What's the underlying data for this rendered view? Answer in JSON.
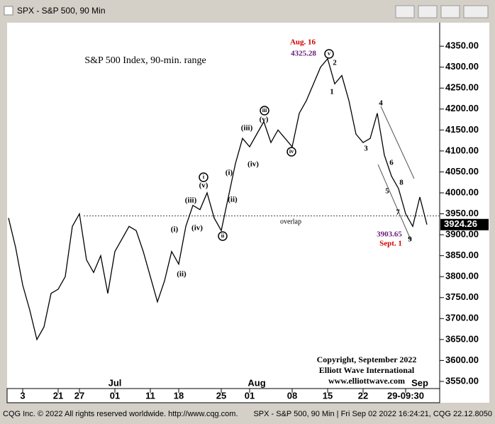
{
  "window_title": "SPX - S&P 500, 90 Min",
  "status_left": "CQG Inc. © 2022 All rights reserved worldwide. http://www.cqg.com.",
  "status_right": "SPX - S&P 500, 90 Min | Fri Sep 02 2022 16:24:21, CQG 22.12.8050",
  "chart_data": {
    "type": "line",
    "title": "S&P 500 Index, 90-min. range",
    "copyright": [
      "Copyright, September 2022",
      "Elliott Wave International",
      "www.elliottwave.com"
    ],
    "categories": [
      null,
      null,
      "3",
      null,
      null,
      null,
      null,
      "21",
      null,
      null,
      "27",
      null,
      null,
      null,
      null,
      "01",
      null,
      null,
      null,
      null,
      "11",
      null,
      null,
      null,
      "18",
      null,
      null,
      null,
      null,
      null,
      "25",
      null,
      null,
      null,
      "01",
      null,
      null,
      null,
      null,
      null,
      "08",
      null,
      null,
      null,
      null,
      "15",
      null,
      null,
      null,
      null,
      "22",
      null,
      null,
      null,
      null,
      null,
      "29-09:30",
      null,
      null,
      null
    ],
    "month_labels": [
      "Jul",
      "Aug",
      "Sep"
    ],
    "series": [
      {
        "name": "SPX",
        "color": "#000000",
        "values": [
          3940,
          3870,
          3780,
          3720,
          3650,
          3680,
          3760,
          3770,
          3800,
          3920,
          3950,
          3840,
          3810,
          3850,
          3760,
          3860,
          3890,
          3920,
          3910,
          3860,
          3800,
          3740,
          3790,
          3860,
          3830,
          3920,
          3970,
          3960,
          4000,
          3940,
          3910,
          3990,
          4070,
          4130,
          4110,
          4140,
          4170,
          4120,
          4150,
          4130,
          4110,
          4190,
          4220,
          4260,
          4300,
          4320,
          4260,
          4280,
          4220,
          4140,
          4120,
          4130,
          4190,
          4090,
          4040,
          4010,
          3950,
          3920,
          3990,
          3924.26
        ]
      }
    ],
    "last_price": 3924.26,
    "overlap_level": 3945,
    "ylim": [
      3533,
      4401
    ],
    "yticks": [
      {
        "value": 3550,
        "label": "3550.00"
      },
      {
        "value": 3600,
        "label": "3600.00"
      },
      {
        "value": 3650,
        "label": "3650.00"
      },
      {
        "value": 3700,
        "label": "3700.00"
      },
      {
        "value": 3750,
        "label": "3750.00"
      },
      {
        "value": 3800,
        "label": "3800.00"
      },
      {
        "value": 3850,
        "label": "3850.00"
      },
      {
        "value": 3900,
        "label": "3900.00"
      },
      {
        "value": 3950,
        "label": "3950.00"
      },
      {
        "value": 4000,
        "label": "4000.00"
      },
      {
        "value": 4050,
        "label": "4050.00"
      },
      {
        "value": 4100,
        "label": "4100.00"
      },
      {
        "value": 4150,
        "label": "4150.00"
      },
      {
        "value": 4200,
        "label": "4200.00"
      },
      {
        "value": 4250,
        "label": "4250.00"
      },
      {
        "value": 4300,
        "label": "4300.00"
      },
      {
        "value": 4350,
        "label": "4350.00"
      }
    ],
    "annotations": [
      "Aug. 16",
      "4325.28",
      "v",
      "2",
      "1",
      "4",
      "3",
      "6",
      "5",
      "8",
      "7",
      "9",
      "3903.65",
      "Sept. 1",
      "(iii)",
      "(v)",
      "iii",
      "(iv)",
      "iv",
      "(i)",
      "(ii)",
      "(iii)",
      "(v)",
      "i",
      "(iv)",
      "ii",
      "(i)",
      "(ii)",
      "overlap"
    ]
  }
}
